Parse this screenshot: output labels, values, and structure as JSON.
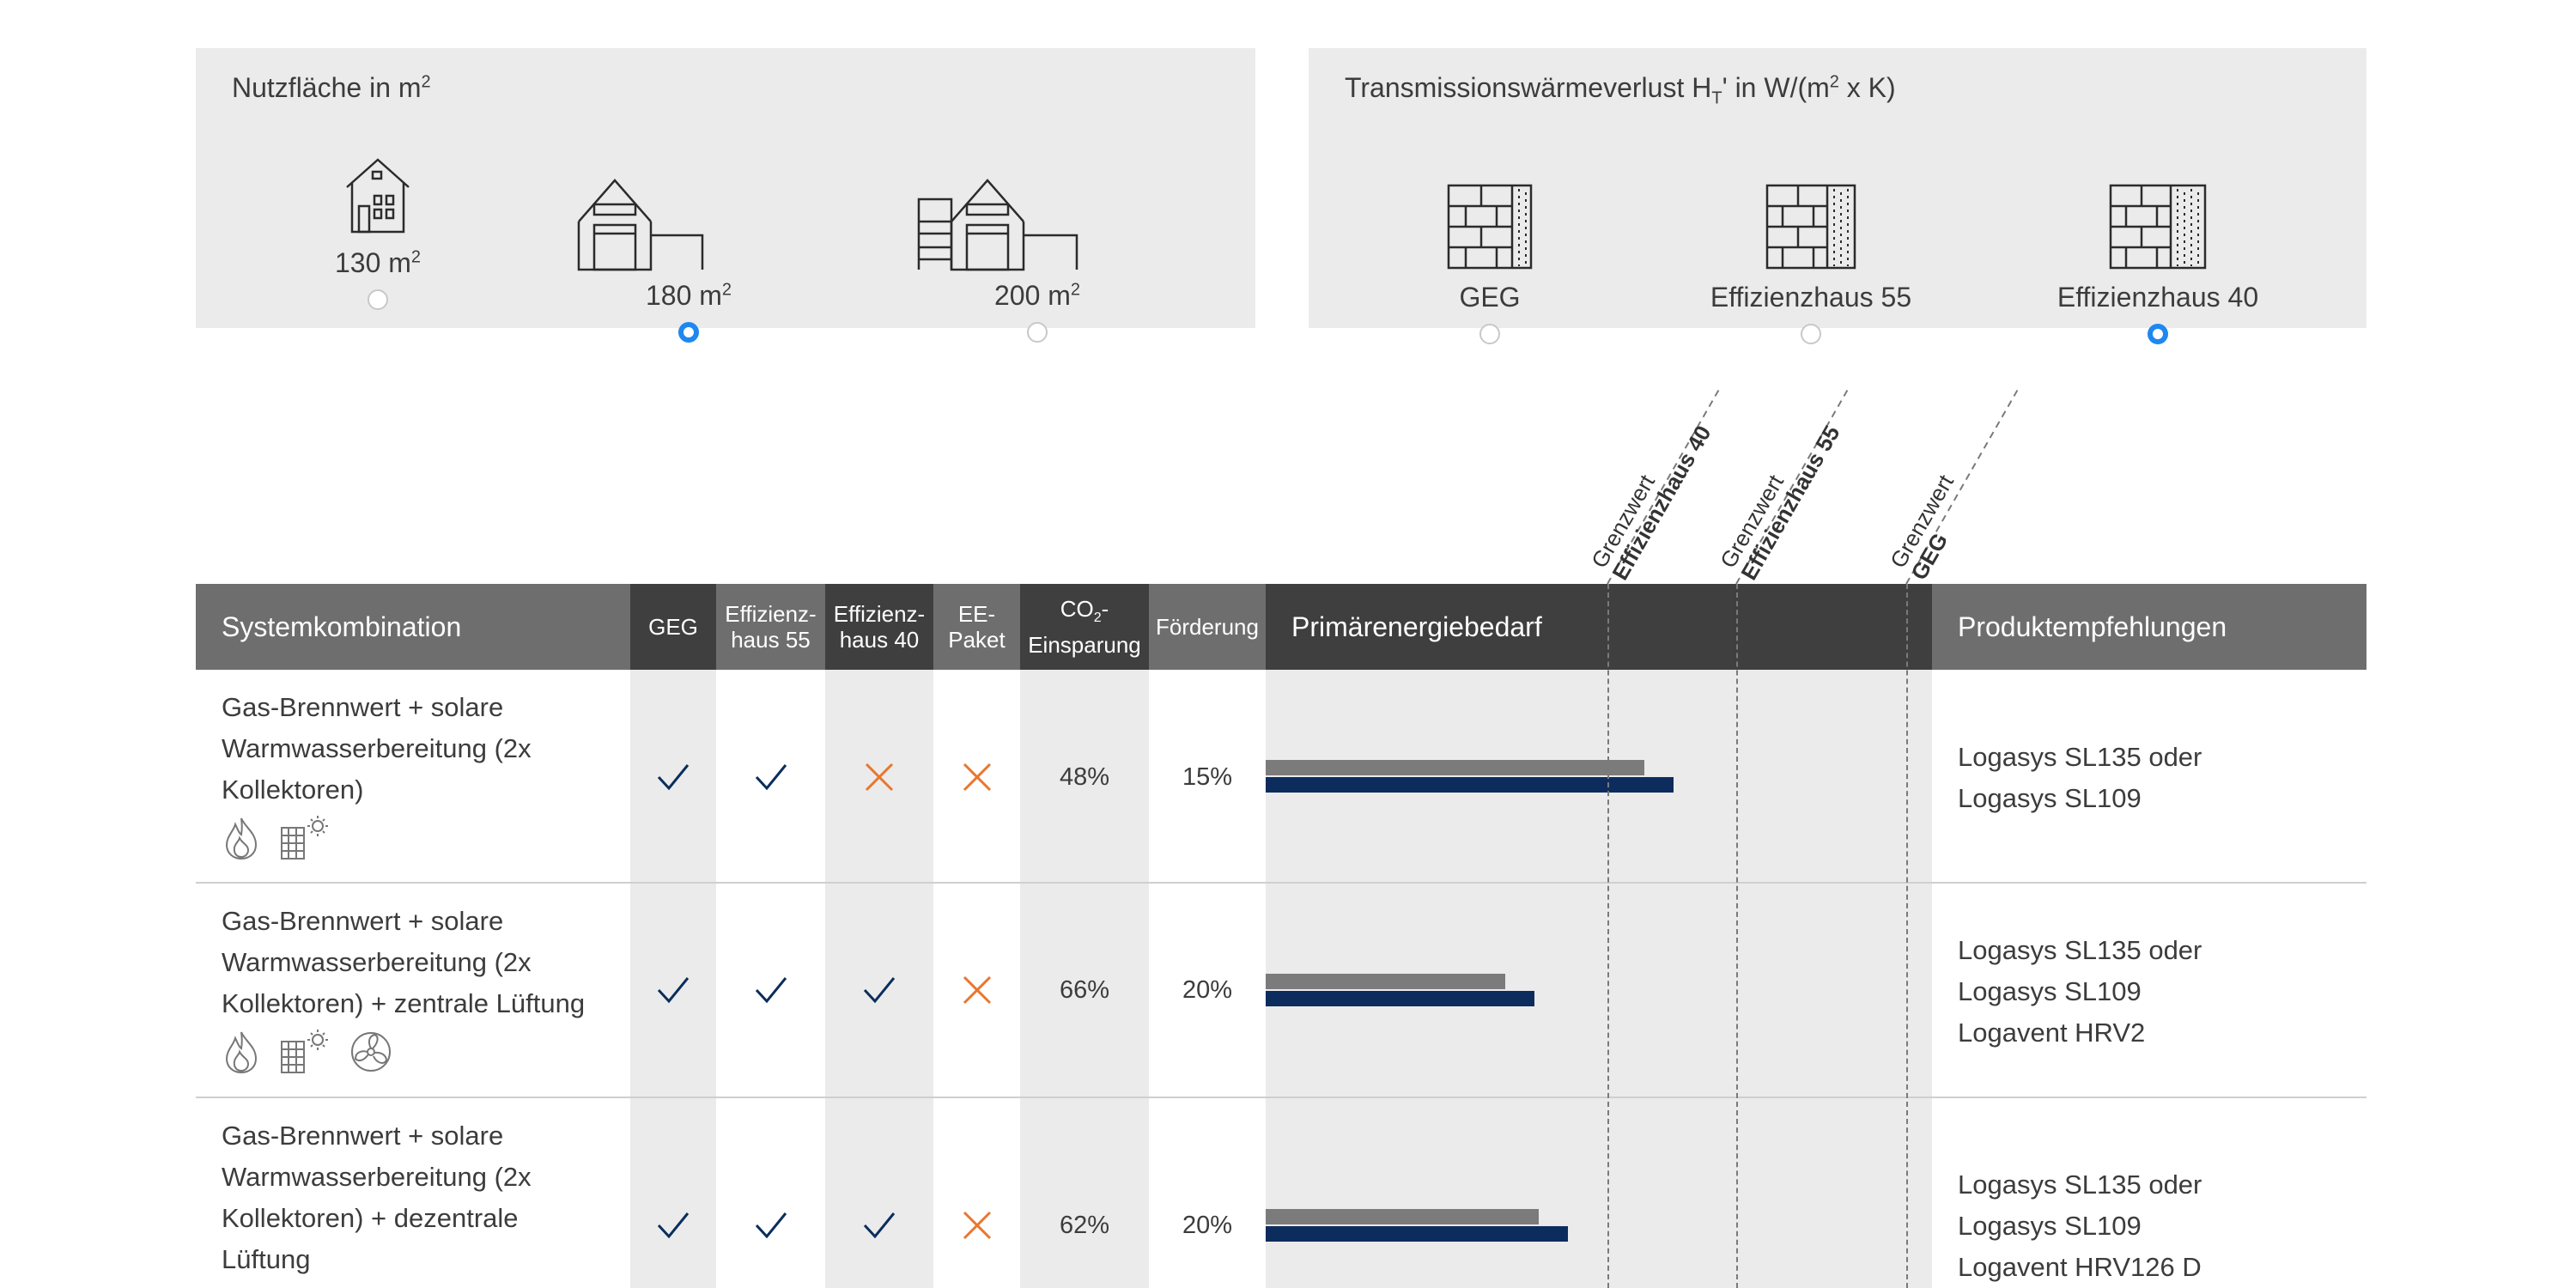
{
  "area_panel": {
    "title": "Nutzfläche in m",
    "title_sup": "2",
    "options": [
      {
        "label": "130 m",
        "sup": "2",
        "selected": false
      },
      {
        "label": "180 m",
        "sup": "2",
        "selected": true
      },
      {
        "label": "200 m",
        "sup": "2",
        "selected": false
      }
    ]
  },
  "loss_panel": {
    "title_a": "Transmissionswärmeverlust H",
    "title_sub": "T",
    "title_b": "' in W/(m",
    "title_sup": "2",
    "title_c": " x K)",
    "options": [
      {
        "label": "GEG",
        "selected": false
      },
      {
        "label": "Effizienzhaus 55",
        "selected": false
      },
      {
        "label": "Effizienzhaus 40",
        "selected": true
      }
    ]
  },
  "thresholds": [
    {
      "prefix": "Grenzwert",
      "name": "Effizienzhaus 40"
    },
    {
      "prefix": "Grenzwert",
      "name": "Effizienzhaus 55"
    },
    {
      "prefix": "Grenzwert",
      "name": "GEG"
    }
  ],
  "table": {
    "headers": {
      "system": "Systemkombination",
      "geg": "GEG",
      "eh55_a": "Effizienz-",
      "eh55_b": "haus 55",
      "eh40_a": "Effizienz-",
      "eh40_b": "haus 40",
      "ee_a": "EE-",
      "ee_b": "Paket",
      "co2_a": "CO",
      "co2_sub": "2",
      "co2_b": "-",
      "co2_c": "Einsparung",
      "foerderung": "Förderung",
      "primary": "Primärenergiebedarf",
      "products": "Produktempfehlungen"
    },
    "rows": [
      {
        "system_lines": [
          "Gas-Brennwert + solare",
          "Warmwasserbereitung (2x",
          "Kollektoren)"
        ],
        "icons": [
          "flame-icon",
          "solar-collector-icon"
        ],
        "geg": true,
        "eh55": true,
        "eh40": false,
        "ee": false,
        "co2": "48%",
        "foerderung": "15%",
        "primary_gray": 0.79,
        "primary_blue": 0.85,
        "products": [
          "Logasys SL135 oder",
          "Logasys SL109"
        ]
      },
      {
        "system_lines": [
          "Gas-Brennwert + solare",
          "Warmwasserbereitung (2x",
          "Kollektoren) + zentrale Lüftung"
        ],
        "icons": [
          "flame-icon",
          "solar-collector-icon",
          "fan-icon"
        ],
        "geg": true,
        "eh55": true,
        "eh40": true,
        "ee": false,
        "co2": "66%",
        "foerderung": "20%",
        "primary_gray": 0.5,
        "primary_blue": 0.56,
        "products": [
          "Logasys SL135 oder",
          "Logasys SL109",
          "Logavent HRV2"
        ]
      },
      {
        "system_lines": [
          "Gas-Brennwert + solare",
          "Warmwasserbereitung (2x",
          "Kollektoren) + dezentrale",
          "Lüftung"
        ],
        "icons": [
          "flame-icon",
          "solar-collector-icon",
          "fan-icon"
        ],
        "geg": true,
        "eh55": true,
        "eh40": true,
        "ee": false,
        "co2": "62%",
        "foerderung": "20%",
        "primary_gray": 0.57,
        "primary_blue": 0.63,
        "products": [
          "Logasys SL135 oder",
          "Logasys SL109",
          "Logavent HRV126 D"
        ]
      }
    ]
  },
  "colors": {
    "header_dark": "#3f3f3f",
    "header_mid": "#6e6e6e",
    "check": "#0a2d5c",
    "cross": "#e8772e",
    "bar_gray": "#7b7b7b",
    "bar_blue": "#0d2c5e",
    "radio_selected": "#1e88f0",
    "panel_bg": "#ebebeb"
  }
}
